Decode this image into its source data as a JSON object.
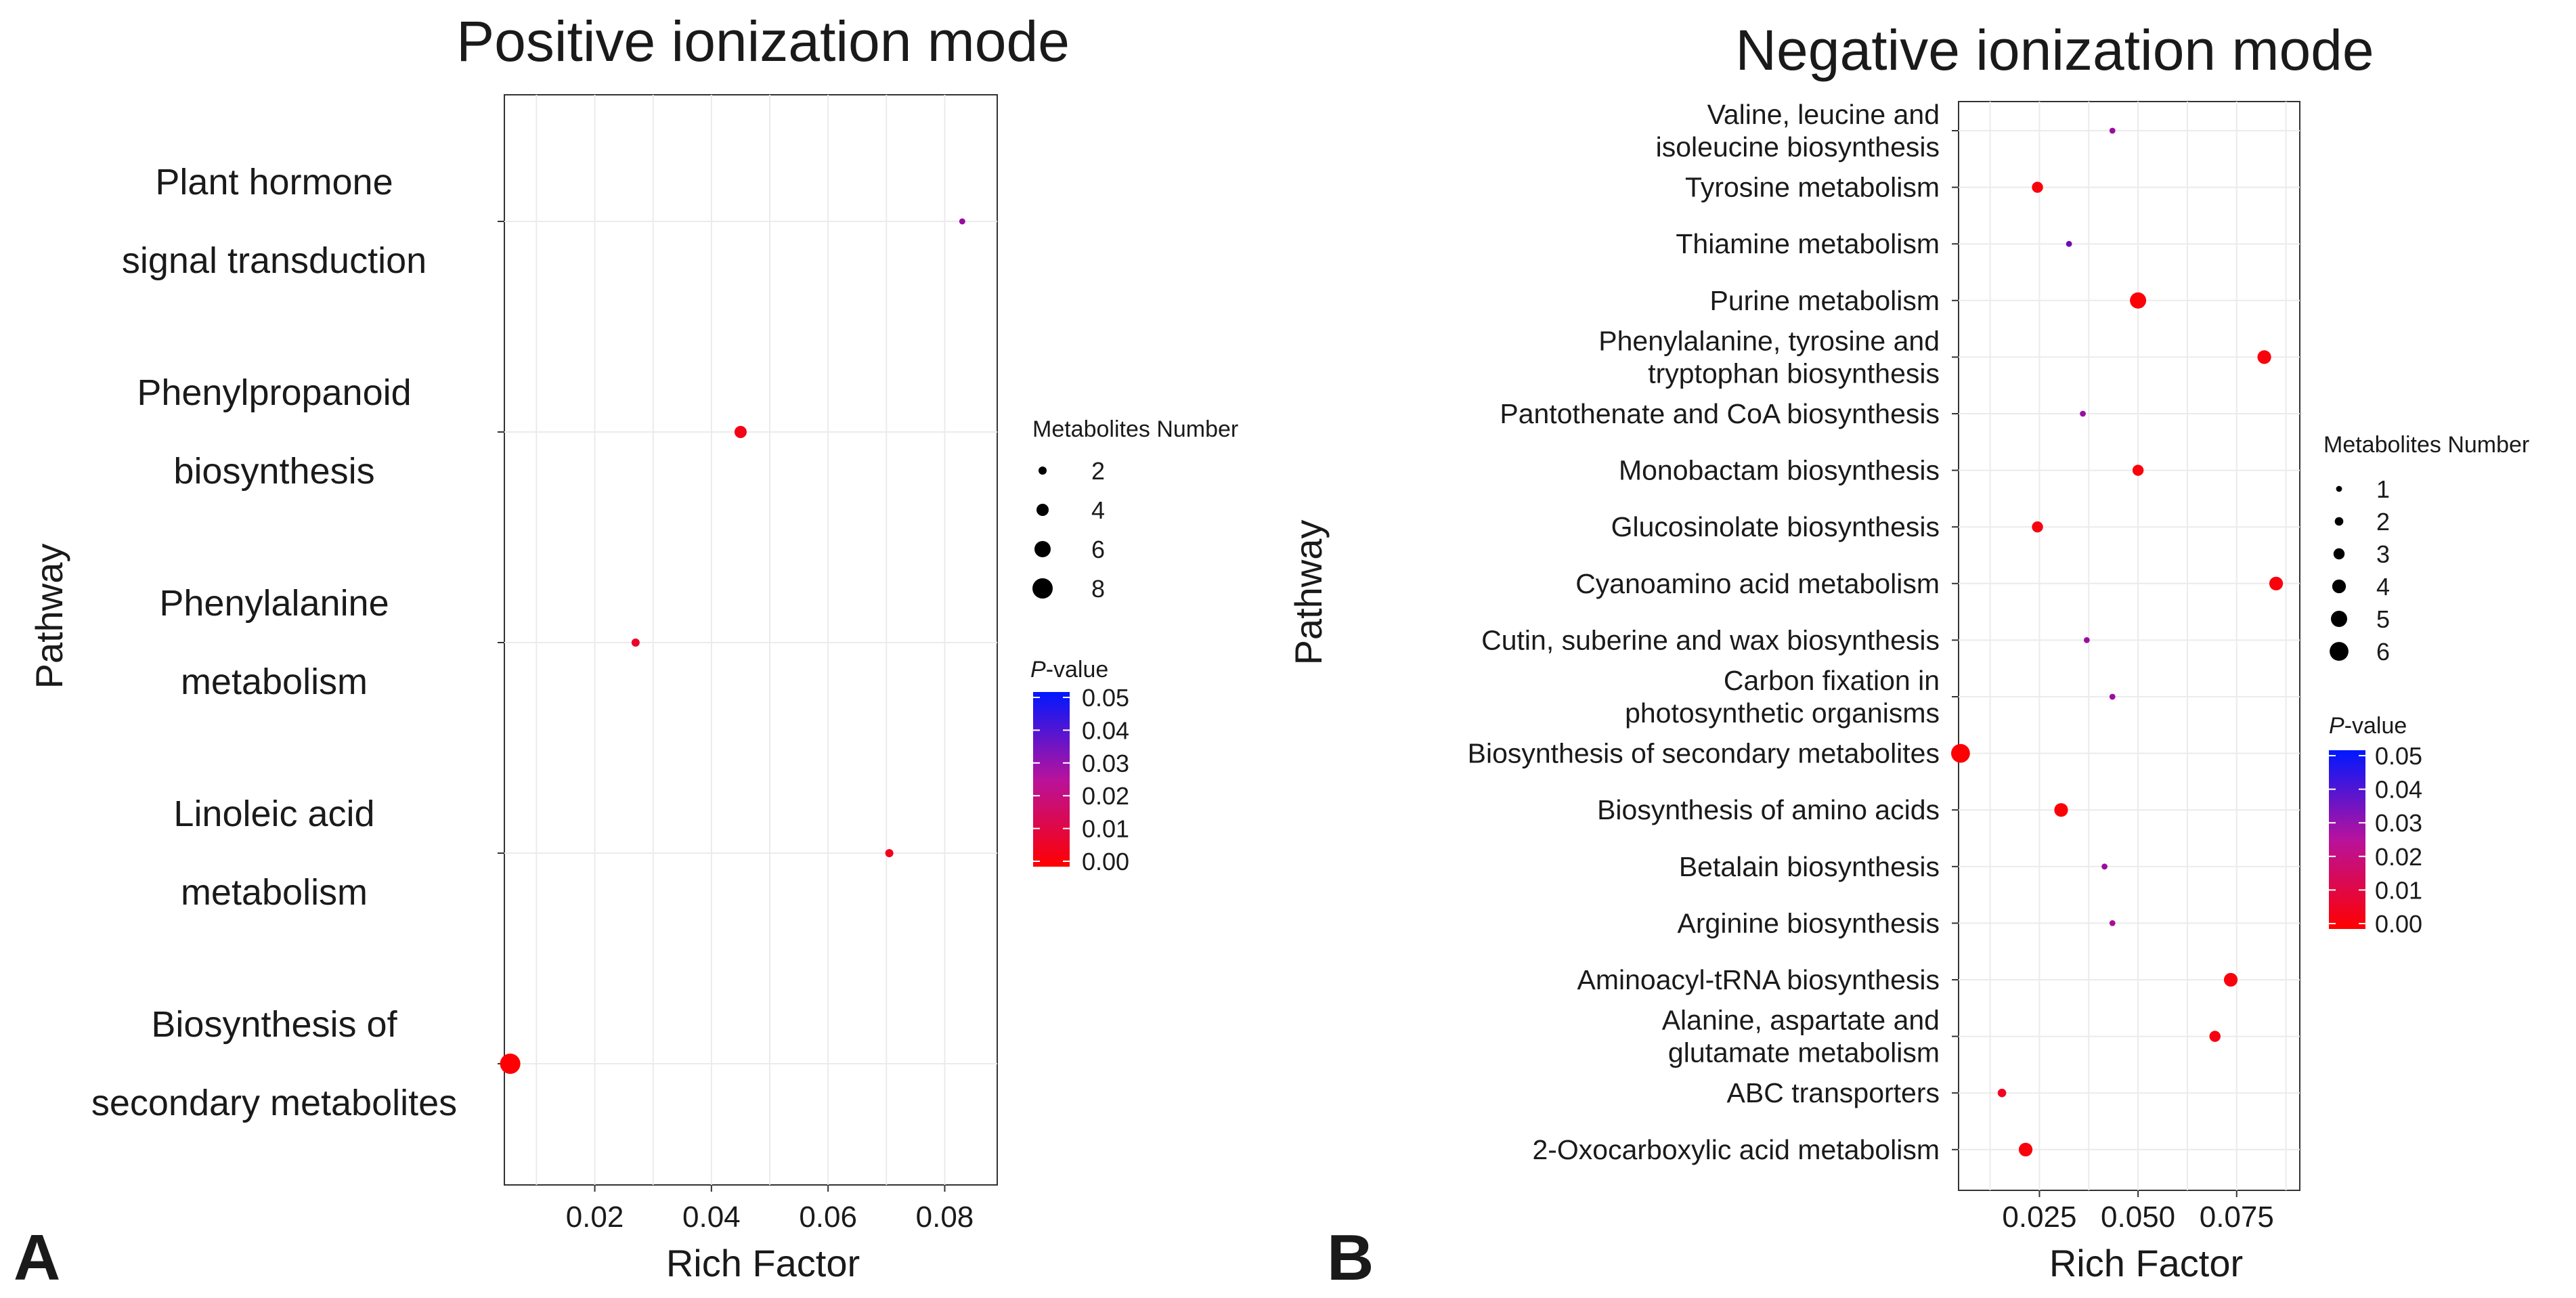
{
  "chart_data": [
    {
      "type": "scatter",
      "panel_label": "A",
      "title": "Positive ionization mode",
      "xlabel": "Rich Factor",
      "ylabel": "Pathway",
      "xlim": [
        0.0045,
        0.089
      ],
      "xticks": [
        {
          "value": 0.02,
          "label": "0.02"
        },
        {
          "value": 0.04,
          "label": "0.04"
        },
        {
          "value": 0.06,
          "label": "0.06"
        },
        {
          "value": 0.08,
          "label": "0.08"
        }
      ],
      "categories": [
        [
          "Plant hormone",
          "signal transduction"
        ],
        [
          "Phenylpropanoid",
          "biosynthesis"
        ],
        [
          "Phenylalanine",
          "metabolism"
        ],
        [
          "Linoleic acid",
          "metabolism"
        ],
        [
          "Biosynthesis of",
          "secondary metabolites"
        ]
      ],
      "points": [
        {
          "x": 0.083,
          "count": 1,
          "p": 0.03
        },
        {
          "x": 0.045,
          "count": 4,
          "p": 0.004
        },
        {
          "x": 0.027,
          "count": 2,
          "p": 0.008
        },
        {
          "x": 0.0705,
          "count": 2,
          "p": 0.005
        },
        {
          "x": 0.0055,
          "count": 8,
          "p": 0.0005
        }
      ],
      "size_legend": {
        "title": "Metabolites Number",
        "values": [
          2,
          4,
          6,
          8
        ]
      },
      "color_legend": {
        "title": "P-value",
        "title_italic": "P",
        "title_rest": "-value",
        "ticks": [
          "0.05",
          "0.04",
          "0.03",
          "0.02",
          "0.01",
          "0.00"
        ],
        "low_color": "#ff0000",
        "high_color": "#0000ff"
      }
    },
    {
      "type": "scatter",
      "panel_label": "B",
      "title": "Negative ionization mode",
      "xlabel": "Rich Factor",
      "ylabel": "Pathway",
      "xlim": [
        0.0045,
        0.091
      ],
      "xticks": [
        {
          "value": 0.025,
          "label": "0.025"
        },
        {
          "value": 0.05,
          "label": "0.050"
        },
        {
          "value": 0.075,
          "label": "0.075"
        }
      ],
      "categories": [
        [
          "Valine, leucine and",
          "isoleucine biosynthesis"
        ],
        [
          "Tyrosine metabolism"
        ],
        [
          "Thiamine metabolism"
        ],
        [
          "Purine metabolism"
        ],
        [
          "Phenylalanine, tyrosine and",
          "tryptophan biosynthesis"
        ],
        [
          "Pantothenate and CoA biosynthesis"
        ],
        [
          "Monobactam biosynthesis"
        ],
        [
          "Glucosinolate biosynthesis"
        ],
        [
          "Cyanoamino acid metabolism"
        ],
        [
          "Cutin, suberine and wax biosynthesis"
        ],
        [
          "Carbon fixation in",
          "photosynthetic organisms"
        ],
        [
          "Biosynthesis of secondary metabolites"
        ],
        [
          "Biosynthesis of amino acids"
        ],
        [
          "Betalain biosynthesis"
        ],
        [
          "Arginine biosynthesis"
        ],
        [
          "Aminoacyl-tRNA biosynthesis"
        ],
        [
          "Alanine, aspartate and",
          "glutamate metabolism"
        ],
        [
          "ABC transporters"
        ],
        [
          "2-Oxocarboxylic acid metabolism"
        ]
      ],
      "points": [
        {
          "x": 0.0435,
          "count": 1,
          "p": 0.03
        },
        {
          "x": 0.0245,
          "count": 3,
          "p": 0.002
        },
        {
          "x": 0.0325,
          "count": 1,
          "p": 0.035
        },
        {
          "x": 0.05,
          "count": 5,
          "p": 0.001
        },
        {
          "x": 0.082,
          "count": 4,
          "p": 0.002
        },
        {
          "x": 0.036,
          "count": 1,
          "p": 0.03
        },
        {
          "x": 0.05,
          "count": 3,
          "p": 0.002
        },
        {
          "x": 0.0245,
          "count": 3,
          "p": 0.003
        },
        {
          "x": 0.085,
          "count": 4,
          "p": 0.002
        },
        {
          "x": 0.037,
          "count": 1,
          "p": 0.03
        },
        {
          "x": 0.0435,
          "count": 1,
          "p": 0.03
        },
        {
          "x": 0.005,
          "count": 6,
          "p": 0.0005
        },
        {
          "x": 0.0305,
          "count": 4,
          "p": 0.001
        },
        {
          "x": 0.0415,
          "count": 1,
          "p": 0.03
        },
        {
          "x": 0.0435,
          "count": 1,
          "p": 0.028
        },
        {
          "x": 0.0735,
          "count": 4,
          "p": 0.002
        },
        {
          "x": 0.0695,
          "count": 3,
          "p": 0.003
        },
        {
          "x": 0.0155,
          "count": 2,
          "p": 0.006
        },
        {
          "x": 0.0215,
          "count": 4,
          "p": 0.002
        }
      ],
      "size_legend": {
        "title": "Metabolites Number",
        "values": [
          1,
          2,
          3,
          4,
          5,
          6
        ]
      },
      "color_legend": {
        "title": "P-value",
        "title_italic": "P",
        "title_rest": "-value",
        "ticks": [
          "0.05",
          "0.04",
          "0.03",
          "0.02",
          "0.01",
          "0.00"
        ],
        "low_color": "#ff0000",
        "high_color": "#0000ff"
      }
    }
  ]
}
